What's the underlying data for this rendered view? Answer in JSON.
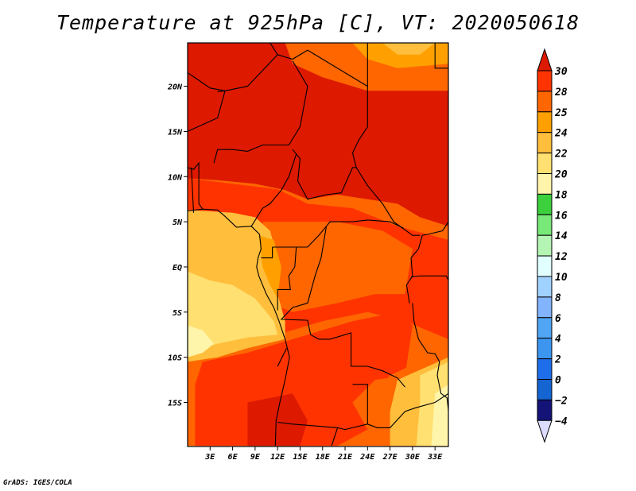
{
  "title": "Temperature at 925hPa [C], VT: 2020050618",
  "credit": "GrADS: IGES/COLA",
  "chart_data": {
    "type": "heatmap",
    "title": "Temperature at 925hPa [C], VT: 2020050618",
    "variable": "Temperature at 925hPa",
    "units": "C",
    "valid_time": "2020050618",
    "lon_range": [
      0,
      34.8
    ],
    "lat_range": [
      -19.8,
      24.8
    ],
    "lat_ticks": [
      "20N",
      "15N",
      "10N",
      "5N",
      "EQ",
      "5S",
      "10S",
      "15S"
    ],
    "lat_tick_values": [
      20,
      15,
      10,
      5,
      0,
      -5,
      -10,
      -15
    ],
    "lon_ticks": [
      "3E",
      "6E",
      "9E",
      "12E",
      "15E",
      "18E",
      "21E",
      "24E",
      "27E",
      "30E",
      "33E"
    ],
    "lon_tick_values": [
      3,
      6,
      9,
      12,
      15,
      18,
      21,
      24,
      27,
      30,
      33
    ],
    "colorbar": {
      "labels": [
        "30",
        "28",
        "25",
        "24",
        "22",
        "20",
        "18",
        "16",
        "14",
        "12",
        "10",
        "8",
        "6",
        "4",
        "2",
        "0",
        "−2",
        "−4"
      ],
      "above_color": "#dd1900",
      "below_color": "#dcdcff",
      "colors": [
        "#ff3300",
        "#ff6600",
        "#ffa000",
        "#ffbe3c",
        "#ffe070",
        "#fff5aa",
        "#3cd03c",
        "#78e878",
        "#b4f5b4",
        "#e1ffff",
        "#a0d2ff",
        "#82b4ff",
        "#50a5f5",
        "#3c96f0",
        "#1e6eeb",
        "#1464d2",
        "#141478"
      ]
    }
  }
}
